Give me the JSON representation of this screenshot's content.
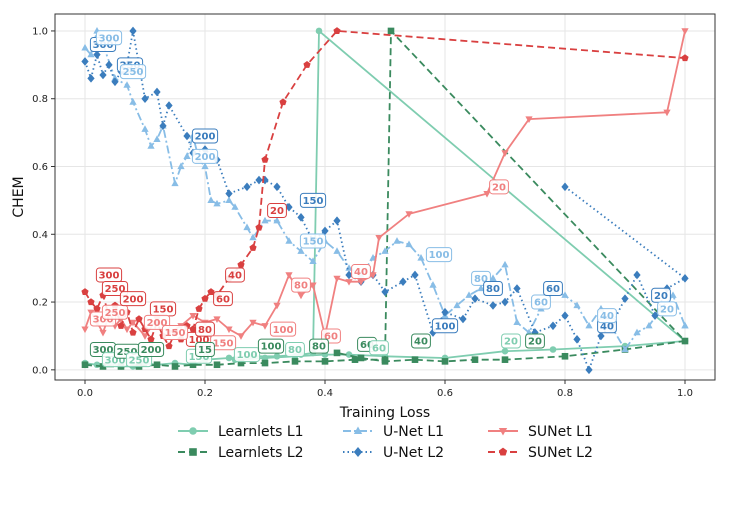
{
  "chart_data": {
    "type": "line",
    "title": "",
    "xlabel": "Training Loss",
    "ylabel": "CHEM",
    "xlim": [
      -0.05,
      1.05
    ],
    "ylim": [
      -0.03,
      1.05
    ],
    "xticks": [
      "0.0",
      "0.2",
      "0.4",
      "0.6",
      "0.8",
      "1.0"
    ],
    "yticks": [
      "0.0",
      "0.2",
      "0.4",
      "0.6",
      "0.8",
      "1.0"
    ],
    "xtick_values": [
      0,
      0.2,
      0.4,
      0.6,
      0.8,
      1.0
    ],
    "ytick_values": [
      0,
      0.2,
      0.4,
      0.6,
      0.8,
      1.0
    ],
    "grid": true,
    "legend_position": "bottom",
    "series": [
      {
        "name": "Learnlets L1",
        "color": "#7fcdb0",
        "dash": "solid",
        "marker": "circle",
        "opacity": 1,
        "x": [
          0.0,
          0.02,
          0.04,
          0.06,
          0.08,
          0.1,
          0.12,
          0.15,
          0.18,
          0.2,
          0.24,
          0.28,
          0.32,
          0.36,
          0.38,
          0.39,
          1.0,
          0.9,
          0.78,
          0.7,
          0.6,
          0.5,
          0.44,
          0.4,
          0.35,
          0.3,
          0.25
        ],
        "y": [
          0.02,
          0.015,
          0.02,
          0.01,
          0.01,
          0.02,
          0.015,
          0.02,
          0.015,
          0.03,
          0.035,
          0.04,
          0.04,
          0.045,
          0.05,
          1.0,
          0.085,
          0.07,
          0.06,
          0.055,
          0.035,
          0.04,
          0.045,
          0.045,
          0.04,
          0.035,
          0.03
        ]
      },
      {
        "name": "Learnlets L2",
        "color": "#3a8a5e",
        "dash": "dashed",
        "marker": "square",
        "opacity": 1,
        "x": [
          0.0,
          0.03,
          0.06,
          0.09,
          0.12,
          0.15,
          0.18,
          0.22,
          0.26,
          0.3,
          0.35,
          0.4,
          0.45,
          0.5,
          0.51,
          1.0,
          0.9,
          0.8,
          0.7,
          0.65,
          0.6,
          0.55,
          0.5,
          0.46,
          0.42
        ],
        "y": [
          0.015,
          0.01,
          0.01,
          0.01,
          0.015,
          0.01,
          0.015,
          0.015,
          0.02,
          0.02,
          0.025,
          0.025,
          0.03,
          0.03,
          1.0,
          0.085,
          0.06,
          0.04,
          0.03,
          0.03,
          0.025,
          0.03,
          0.025,
          0.035,
          0.05
        ]
      },
      {
        "name": "U-Net L1",
        "color": "#88bde6",
        "dash": "dashdot",
        "marker": "triangle-up",
        "opacity": 1,
        "x": [
          0.0,
          0.01,
          0.02,
          0.03,
          0.05,
          0.07,
          0.08,
          0.1,
          0.11,
          0.12,
          0.13,
          0.15,
          0.16,
          0.17,
          0.18,
          0.19,
          0.2,
          0.21,
          0.22,
          0.24,
          0.25,
          0.27,
          0.28,
          0.3,
          0.32,
          0.34,
          0.36,
          0.38,
          0.4,
          0.42,
          0.44,
          0.46,
          0.48,
          0.5,
          0.52,
          0.54,
          0.56,
          0.58,
          0.6,
          0.62,
          0.64,
          0.66,
          0.68,
          0.7,
          0.72,
          0.74,
          0.76,
          0.78,
          0.8,
          0.82,
          0.84,
          0.86,
          0.88,
          0.9,
          0.92,
          0.94,
          0.96,
          0.98,
          1.0,
          1.0
        ],
        "y": [
          0.95,
          0.93,
          1.0,
          0.96,
          0.86,
          0.84,
          0.79,
          0.71,
          0.66,
          0.68,
          0.72,
          0.55,
          0.6,
          0.63,
          0.69,
          0.62,
          0.6,
          0.5,
          0.49,
          0.5,
          0.48,
          0.42,
          0.39,
          0.44,
          0.44,
          0.38,
          0.35,
          0.32,
          0.38,
          0.35,
          0.3,
          0.28,
          0.33,
          0.35,
          0.38,
          0.37,
          0.33,
          0.25,
          0.16,
          0.19,
          0.22,
          0.24,
          0.27,
          0.31,
          0.14,
          0.11,
          0.18,
          0.23,
          0.22,
          0.19,
          0.13,
          0.18,
          0.12,
          0.06,
          0.11,
          0.13,
          0.18,
          0.22,
          0.13,
          0.13
        ]
      },
      {
        "name": "U-Net L2",
        "color": "#3b7dbd",
        "dash": "dotted",
        "marker": "diamond",
        "opacity": 1,
        "x": [
          0.0,
          0.01,
          0.02,
          0.03,
          0.04,
          0.05,
          0.06,
          0.07,
          0.08,
          0.1,
          0.12,
          0.13,
          0.14,
          0.17,
          0.18,
          0.2,
          0.22,
          0.24,
          0.27,
          0.29,
          0.3,
          0.32,
          0.34,
          0.36,
          0.38,
          0.4,
          0.42,
          0.44,
          0.46,
          0.48,
          0.5,
          0.53,
          0.55,
          0.58,
          0.6,
          0.63,
          0.65,
          0.68,
          0.7,
          0.72,
          0.75,
          0.78,
          0.8,
          0.82,
          0.84,
          0.86,
          0.88,
          0.9,
          0.92,
          0.95,
          0.97,
          1.0,
          0.8
        ],
        "y": [
          0.91,
          0.86,
          0.93,
          0.87,
          0.9,
          0.85,
          0.88,
          0.9,
          1.0,
          0.8,
          0.82,
          0.72,
          0.78,
          0.69,
          0.64,
          0.65,
          0.62,
          0.52,
          0.54,
          0.56,
          0.56,
          0.54,
          0.48,
          0.45,
          0.38,
          0.41,
          0.44,
          0.28,
          0.26,
          0.28,
          0.23,
          0.26,
          0.28,
          0.11,
          0.17,
          0.15,
          0.21,
          0.19,
          0.2,
          0.24,
          0.11,
          0.13,
          0.16,
          0.09,
          0.0,
          0.1,
          0.14,
          0.21,
          0.28,
          0.16,
          0.24,
          0.27,
          0.54
        ]
      },
      {
        "name": "SUNet L1",
        "color": "#f08080",
        "dash": "solid",
        "marker": "triangle-down",
        "opacity": 1,
        "x": [
          0.0,
          0.01,
          0.02,
          0.03,
          0.04,
          0.05,
          0.06,
          0.07,
          0.08,
          0.1,
          0.12,
          0.14,
          0.16,
          0.18,
          0.2,
          0.22,
          0.24,
          0.26,
          0.28,
          0.3,
          0.32,
          0.34,
          0.36,
          0.38,
          0.4,
          0.42,
          0.44,
          0.46,
          0.48,
          0.49,
          0.54,
          0.67,
          0.7,
          0.74,
          0.97,
          1.0
        ],
        "y": [
          0.12,
          0.17,
          0.14,
          0.11,
          0.16,
          0.13,
          0.15,
          0.12,
          0.14,
          0.1,
          0.15,
          0.11,
          0.13,
          0.16,
          0.14,
          0.15,
          0.12,
          0.1,
          0.14,
          0.13,
          0.19,
          0.28,
          0.22,
          0.25,
          0.1,
          0.27,
          0.26,
          0.26,
          0.28,
          0.39,
          0.46,
          0.52,
          0.64,
          0.74,
          0.76,
          1.0
        ]
      },
      {
        "name": "SUNet L2",
        "color": "#d94040",
        "dash": "dashed",
        "marker": "pentagon",
        "opacity": 1,
        "x": [
          0.0,
          0.01,
          0.02,
          0.03,
          0.04,
          0.05,
          0.06,
          0.07,
          0.08,
          0.09,
          0.1,
          0.11,
          0.12,
          0.13,
          0.14,
          0.15,
          0.16,
          0.17,
          0.18,
          0.19,
          0.2,
          0.21,
          0.22,
          0.24,
          0.26,
          0.28,
          0.29,
          0.3,
          0.33,
          0.37,
          0.42,
          1.0
        ],
        "y": [
          0.23,
          0.2,
          0.18,
          0.22,
          0.16,
          0.19,
          0.13,
          0.17,
          0.11,
          0.15,
          0.12,
          0.09,
          0.14,
          0.1,
          0.07,
          0.11,
          0.09,
          0.13,
          0.12,
          0.18,
          0.21,
          0.23,
          0.22,
          0.27,
          0.31,
          0.36,
          0.42,
          0.62,
          0.79,
          0.9,
          1.0,
          0.92
        ]
      }
    ],
    "annotations": [
      {
        "text": "300",
        "series": 3,
        "x": 0.03,
        "y": 0.96
      },
      {
        "text": "300",
        "series": 2,
        "x": 0.04,
        "y": 0.98
      },
      {
        "text": "250",
        "series": 3,
        "x": 0.075,
        "y": 0.9
      },
      {
        "text": "250",
        "series": 2,
        "x": 0.08,
        "y": 0.88
      },
      {
        "text": "200",
        "series": 3,
        "x": 0.2,
        "y": 0.69
      },
      {
        "text": "200",
        "series": 2,
        "x": 0.2,
        "y": 0.63
      },
      {
        "text": "150",
        "series": 3,
        "x": 0.38,
        "y": 0.5
      },
      {
        "text": "150",
        "series": 2,
        "x": 0.38,
        "y": 0.38
      },
      {
        "text": "100",
        "series": 2,
        "x": 0.59,
        "y": 0.34
      },
      {
        "text": "100",
        "series": 3,
        "x": 0.6,
        "y": 0.13
      },
      {
        "text": "80",
        "series": 2,
        "x": 0.66,
        "y": 0.27
      },
      {
        "text": "80",
        "series": 3,
        "x": 0.68,
        "y": 0.24
      },
      {
        "text": "60",
        "series": 2,
        "x": 0.76,
        "y": 0.2
      },
      {
        "text": "60",
        "series": 3,
        "x": 0.78,
        "y": 0.24
      },
      {
        "text": "40",
        "series": 3,
        "x": 0.87,
        "y": 0.13
      },
      {
        "text": "40",
        "series": 2,
        "x": 0.87,
        "y": 0.16
      },
      {
        "text": "20",
        "series": 3,
        "x": 0.96,
        "y": 0.22
      },
      {
        "text": "20",
        "series": 2,
        "x": 0.97,
        "y": 0.18
      },
      {
        "text": "300",
        "series": 5,
        "x": 0.04,
        "y": 0.28
      },
      {
        "text": "250",
        "series": 5,
        "x": 0.05,
        "y": 0.24
      },
      {
        "text": "300",
        "series": 4,
        "x": 0.03,
        "y": 0.15
      },
      {
        "text": "250",
        "series": 4,
        "x": 0.05,
        "y": 0.17
      },
      {
        "text": "200",
        "series": 5,
        "x": 0.08,
        "y": 0.21
      },
      {
        "text": "150",
        "series": 5,
        "x": 0.13,
        "y": 0.18
      },
      {
        "text": "200",
        "series": 4,
        "x": 0.12,
        "y": 0.14
      },
      {
        "text": "100",
        "series": 5,
        "x": 0.19,
        "y": 0.09
      },
      {
        "text": "80",
        "series": 5,
        "x": 0.2,
        "y": 0.12
      },
      {
        "text": "150",
        "series": 4,
        "x": 0.15,
        "y": 0.11
      },
      {
        "text": "150",
        "series": 4,
        "x": 0.23,
        "y": 0.08
      },
      {
        "text": "60",
        "series": 5,
        "x": 0.23,
        "y": 0.21
      },
      {
        "text": "40",
        "series": 5,
        "x": 0.25,
        "y": 0.28
      },
      {
        "text": "20",
        "series": 5,
        "x": 0.32,
        "y": 0.47
      },
      {
        "text": "100",
        "series": 4,
        "x": 0.33,
        "y": 0.12
      },
      {
        "text": "80",
        "series": 4,
        "x": 0.36,
        "y": 0.25
      },
      {
        "text": "60",
        "series": 4,
        "x": 0.41,
        "y": 0.1
      },
      {
        "text": "40",
        "series": 4,
        "x": 0.46,
        "y": 0.29
      },
      {
        "text": "20",
        "series": 4,
        "x": 0.69,
        "y": 0.54
      },
      {
        "text": "300",
        "series": 1,
        "x": 0.03,
        "y": 0.06
      },
      {
        "text": "300",
        "series": 0,
        "x": 0.05,
        "y": 0.03
      },
      {
        "text": "250",
        "series": 1,
        "x": 0.07,
        "y": 0.055
      },
      {
        "text": "250",
        "series": 0,
        "x": 0.09,
        "y": 0.03
      },
      {
        "text": "200",
        "series": 1,
        "x": 0.11,
        "y": 0.06
      },
      {
        "text": "150",
        "series": 0,
        "x": 0.19,
        "y": 0.04
      },
      {
        "text": "15",
        "series": 1,
        "x": 0.2,
        "y": 0.06
      },
      {
        "text": "100",
        "series": 0,
        "x": 0.27,
        "y": 0.045
      },
      {
        "text": "100",
        "series": 1,
        "x": 0.31,
        "y": 0.07
      },
      {
        "text": "80",
        "series": 0,
        "x": 0.35,
        "y": 0.06
      },
      {
        "text": "80",
        "series": 1,
        "x": 0.39,
        "y": 0.07
      },
      {
        "text": "60",
        "series": 1,
        "x": 0.47,
        "y": 0.075
      },
      {
        "text": "60",
        "series": 0,
        "x": 0.49,
        "y": 0.065
      },
      {
        "text": "40",
        "series": 1,
        "x": 0.56,
        "y": 0.085
      },
      {
        "text": "20",
        "series": 0,
        "x": 0.71,
        "y": 0.085
      },
      {
        "text": "20",
        "series": 1,
        "x": 0.75,
        "y": 0.085
      }
    ]
  }
}
